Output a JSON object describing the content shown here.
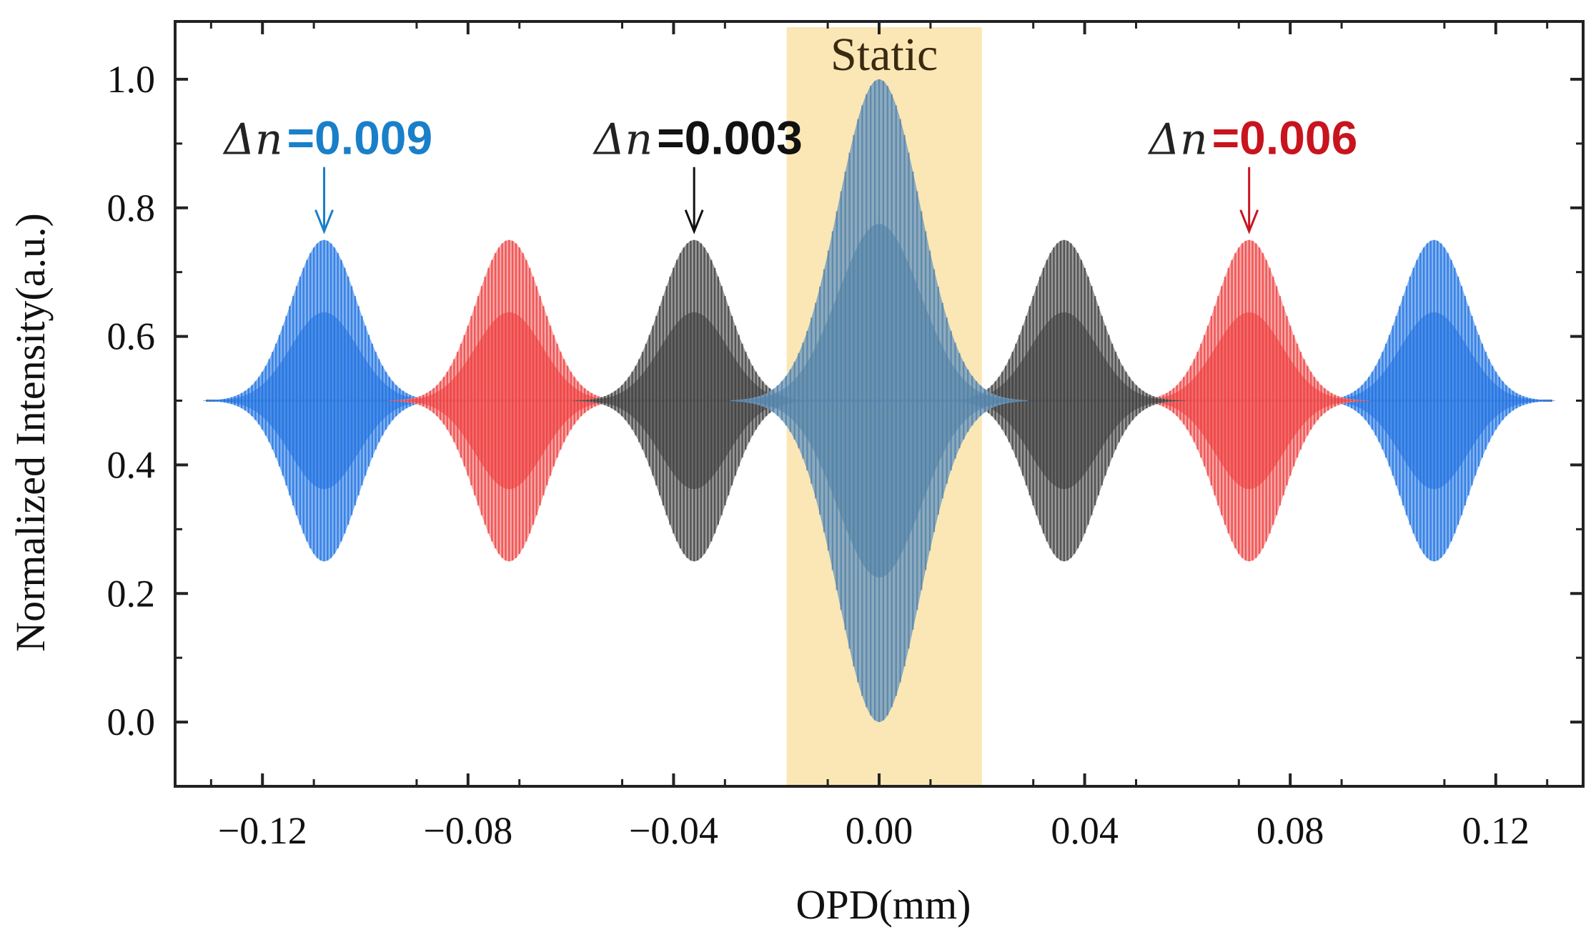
{
  "chart_data": {
    "type": "line",
    "title": "",
    "xlabel": "OPD(mm)",
    "ylabel": "Normalized Intensity(a.u.)",
    "xlim": [
      -0.137,
      0.137
    ],
    "ylim": [
      -0.1,
      1.09
    ],
    "x_ticks": [
      -0.12,
      -0.08,
      -0.04,
      0.0,
      0.04,
      0.08,
      0.12
    ],
    "x_tick_labels": [
      "−0.12",
      "−0.08",
      "−0.04",
      "0.00",
      "0.04",
      "0.08",
      "0.12"
    ],
    "y_ticks": [
      0.0,
      0.2,
      0.4,
      0.6,
      0.8,
      1.0
    ],
    "y_tick_labels": [
      "0.0",
      "0.2",
      "0.4",
      "0.6",
      "0.8",
      "1.0"
    ],
    "baseline": 0.5,
    "shaded_region": {
      "x_range": [
        -0.018,
        0.02
      ],
      "label": "Static",
      "color": "#fbe7b5"
    },
    "series": [
      {
        "name": "Δn=0.009",
        "color": "#1f6fe0",
        "fill": "#6fa8ef",
        "centers": [
          -0.108,
          0.108
        ],
        "amplitude": 0.25,
        "sigma": 0.0065
      },
      {
        "name": "Δn=0.006",
        "color": "#ee3a3a",
        "fill": "#f59a9a",
        "centers": [
          -0.072,
          0.072
        ],
        "amplitude": 0.25,
        "sigma": 0.0065
      },
      {
        "name": "Δn=0.003",
        "color": "#3c3c3c",
        "fill": "#8a8a8a",
        "centers": [
          -0.036,
          0.036
        ],
        "amplitude": 0.25,
        "sigma": 0.0065
      },
      {
        "name": "Static",
        "color": "#4f7fa6",
        "fill": "#7aa0c0",
        "centers": [
          0.0
        ],
        "amplitude": 0.5,
        "sigma": 0.008
      }
    ],
    "annotations": [
      {
        "prefix": "Δn",
        "value": "=0.009",
        "color": "#1a7fc9",
        "x": -0.108,
        "y": 0.75
      },
      {
        "prefix": "Δn",
        "value": "=0.003",
        "color": "#111111",
        "x": -0.036,
        "y": 0.75
      },
      {
        "prefix": "Δn",
        "value": "=0.006",
        "color": "#c8141e",
        "x": 0.072,
        "y": 0.75
      }
    ]
  }
}
